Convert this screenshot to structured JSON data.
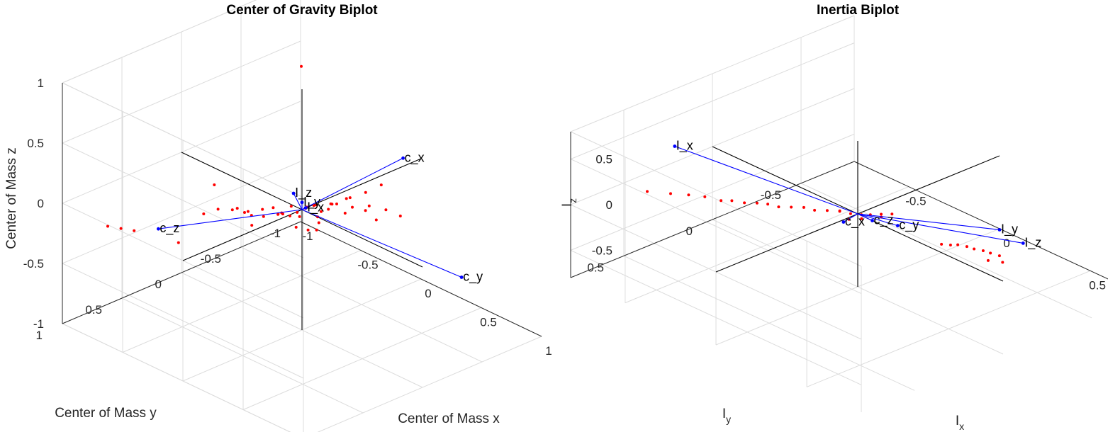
{
  "chart_data": [
    {
      "type": "scatter",
      "title": "Center of Gravity Biplot",
      "xlabel": "Center of Mass x",
      "ylabel": "Center of Mass y",
      "zlabel": "Center of Mass z",
      "xlim": [
        -1,
        1
      ],
      "ylim": [
        -1,
        1
      ],
      "zlim": [
        -1,
        1
      ],
      "xticks": [
        "-1",
        "-0.5",
        "0",
        "0.5",
        "1"
      ],
      "yticks": [
        "-1",
        "-0.5",
        "0",
        "0.5",
        "1"
      ],
      "zticks": [
        "-1",
        "-0.5",
        "0",
        "0.5",
        "1"
      ],
      "grid": true,
      "point_color": "#ff0000",
      "vector_color": "#0000ff",
      "vectors": [
        {
          "label": "c_x",
          "x": 0.72,
          "y": -0.12,
          "z": 0.72
        },
        {
          "label": "c_y",
          "x": 0.85,
          "y": -0.48,
          "z": -0.36
        },
        {
          "label": "c_z",
          "x": -0.52,
          "y": 0.68,
          "z": -0.12
        },
        {
          "label": "I_z",
          "x": -0.05,
          "y": 0.02,
          "z": 0.12
        },
        {
          "label": "I_y",
          "x": 0.0,
          "y": 0.0,
          "z": 0.06
        },
        {
          "label": "I_x",
          "x": 0.02,
          "y": -0.01,
          "z": 0.02
        }
      ],
      "points": [
        {
          "x": -0.92,
          "y": 0.7,
          "z": -0.28
        },
        {
          "x": -0.87,
          "y": 0.64,
          "z": -0.3
        },
        {
          "x": -0.82,
          "y": 0.58,
          "z": -0.32
        },
        {
          "x": -0.58,
          "y": 0.45,
          "z": -0.36
        },
        {
          "x": -0.55,
          "y": 0.18,
          "z": 0.02
        },
        {
          "x": -0.48,
          "y": 0.34,
          "z": -0.12
        },
        {
          "x": -0.4,
          "y": 0.3,
          "z": -0.06
        },
        {
          "x": -0.36,
          "y": 0.22,
          "z": -0.08
        },
        {
          "x": -0.3,
          "y": 0.24,
          "z": -0.03
        },
        {
          "x": -0.25,
          "y": 0.2,
          "z": -0.05
        },
        {
          "x": -0.22,
          "y": 0.1,
          "z": -0.12
        },
        {
          "x": -0.18,
          "y": 0.15,
          "z": -0.02
        },
        {
          "x": -0.15,
          "y": 0.05,
          "z": -0.09
        },
        {
          "x": -0.12,
          "y": 0.12,
          "z": 0.01
        },
        {
          "x": -0.1,
          "y": 0.0,
          "z": -0.1
        },
        {
          "x": -0.08,
          "y": 0.08,
          "z": -0.04
        },
        {
          "x": -0.06,
          "y": -0.02,
          "z": -0.06
        },
        {
          "x": -0.04,
          "y": 0.05,
          "z": 0.03
        },
        {
          "x": -0.02,
          "y": -0.05,
          "z": -0.02
        },
        {
          "x": 0.0,
          "y": 0.02,
          "z": -0.05
        },
        {
          "x": 0.02,
          "y": -0.08,
          "z": 0.01
        },
        {
          "x": 0.04,
          "y": 0.0,
          "z": 0.04
        },
        {
          "x": 0.06,
          "y": -0.1,
          "z": -0.03
        },
        {
          "x": 0.08,
          "y": -0.04,
          "z": 0.06
        },
        {
          "x": 0.1,
          "y": -0.12,
          "z": 0.0
        },
        {
          "x": 0.12,
          "y": -0.02,
          "z": -0.06
        },
        {
          "x": 0.14,
          "y": -0.15,
          "z": 0.05
        },
        {
          "x": 0.16,
          "y": -0.08,
          "z": 0.09
        },
        {
          "x": 0.18,
          "y": -0.18,
          "z": -0.02
        },
        {
          "x": 0.2,
          "y": -0.05,
          "z": 0.12
        },
        {
          "x": 0.22,
          "y": -0.2,
          "z": 0.04
        },
        {
          "x": 0.25,
          "y": -0.12,
          "z": 0.16
        },
        {
          "x": 0.28,
          "y": -0.25,
          "z": 0.02
        },
        {
          "x": 0.3,
          "y": -0.1,
          "z": 0.2
        },
        {
          "x": 0.34,
          "y": -0.22,
          "z": 0.1
        },
        {
          "x": 0.38,
          "y": -0.15,
          "z": 0.26
        },
        {
          "x": 0.42,
          "y": -0.28,
          "z": 0.08
        },
        {
          "x": 0.46,
          "y": -0.2,
          "z": 0.34
        },
        {
          "x": 0.5,
          "y": -0.32,
          "z": 0.05
        },
        {
          "x": -0.05,
          "y": 0.12,
          "z": 0.0
        },
        {
          "x": 0.05,
          "y": 0.1,
          "z": -0.08
        },
        {
          "x": -0.2,
          "y": 0.28,
          "z": 0.0
        },
        {
          "x": 0.1,
          "y": 0.05,
          "z": -0.1
        },
        {
          "x": -0.3,
          "y": 0.12,
          "z": -0.14
        },
        {
          "x": 0.15,
          "y": 0.02,
          "z": 0.02
        },
        {
          "x": 0.2,
          "y": 0.08,
          "z": -0.04
        },
        {
          "x": -0.12,
          "y": 0.3,
          "z": -0.06
        },
        {
          "x": 0.0,
          "y": 0.2,
          "z": 0.05
        },
        {
          "x": 0.32,
          "y": -0.3,
          "z": -0.06
        },
        {
          "x": -0.5,
          "y": -0.5,
          "z": 0.74
        }
      ]
    },
    {
      "type": "scatter",
      "title": "Inertia Biplot",
      "xlabel": "I",
      "xlabel_sub": "x",
      "ylabel": "I",
      "ylabel_sub": "y",
      "zlabel": "I",
      "zlabel_sub": "z",
      "xlim": [
        -0.8,
        0.8
      ],
      "ylim": [
        -0.8,
        0.8
      ],
      "zlim": [
        -0.8,
        0.8
      ],
      "xticks": [
        "-0.5",
        "0",
        "0.5"
      ],
      "yticks": [
        "-0.5",
        "0",
        "0.5"
      ],
      "zticks": [
        "-0.5",
        "0",
        "0.5"
      ],
      "grid": true,
      "point_color": "#ff0000",
      "vector_color": "#0000ff",
      "vectors": [
        {
          "label": "I_x",
          "x": -0.52,
          "y": 0.5,
          "z": 0.66
        },
        {
          "label": "I_y",
          "x": 0.8,
          "y": 0.02,
          "z": 0.58
        },
        {
          "label": "I_z",
          "x": 0.52,
          "y": -0.4,
          "z": -0.16
        },
        {
          "label": "c_y",
          "x": 0.2,
          "y": -0.02,
          "z": 0.04
        },
        {
          "label": "c_z",
          "x": 0.08,
          "y": 0.0,
          "z": 0.0
        },
        {
          "label": "c_x",
          "x": -0.02,
          "y": 0.06,
          "z": -0.06
        }
      ],
      "points": [
        {
          "x": -0.72,
          "y": 0.45,
          "z": -0.06
        },
        {
          "x": -0.64,
          "y": 0.4,
          "z": -0.05
        },
        {
          "x": -0.58,
          "y": 0.36,
          "z": -0.04
        },
        {
          "x": -0.52,
          "y": 0.33,
          "z": -0.03
        },
        {
          "x": -0.46,
          "y": 0.3,
          "z": -0.04
        },
        {
          "x": -0.42,
          "y": 0.28,
          "z": -0.02
        },
        {
          "x": -0.38,
          "y": 0.25,
          "z": -0.03
        },
        {
          "x": -0.34,
          "y": 0.22,
          "z": -0.02
        },
        {
          "x": -0.3,
          "y": 0.2,
          "z": -0.01
        },
        {
          "x": -0.26,
          "y": 0.18,
          "z": -0.02
        },
        {
          "x": -0.22,
          "y": 0.15,
          "z": -0.01
        },
        {
          "x": -0.18,
          "y": 0.12,
          "z": 0.0
        },
        {
          "x": -0.14,
          "y": 0.1,
          "z": -0.01
        },
        {
          "x": -0.1,
          "y": 0.07,
          "z": 0.0
        },
        {
          "x": -0.06,
          "y": 0.04,
          "z": 0.01
        },
        {
          "x": -0.02,
          "y": 0.02,
          "z": 0.0
        },
        {
          "x": 0.02,
          "y": 0.0,
          "z": 0.01
        },
        {
          "x": 0.05,
          "y": -0.02,
          "z": 0.02
        },
        {
          "x": 0.08,
          "y": -0.05,
          "z": 0.03
        },
        {
          "x": 0.11,
          "y": -0.02,
          "z": 0.05
        },
        {
          "x": 0.13,
          "y": -0.06,
          "z": 0.07
        },
        {
          "x": -0.08,
          "y": 0.02,
          "z": -0.03
        },
        {
          "x": 0.0,
          "y": 0.05,
          "z": -0.02
        },
        {
          "x": 0.04,
          "y": 0.02,
          "z": 0.0
        },
        {
          "x": 0.58,
          "y": 0.03,
          "z": 0.22
        },
        {
          "x": 0.62,
          "y": 0.02,
          "z": 0.23
        },
        {
          "x": 0.66,
          "y": 0.02,
          "z": 0.24
        },
        {
          "x": 0.7,
          "y": 0.01,
          "z": 0.25
        },
        {
          "x": 0.74,
          "y": 0.01,
          "z": 0.26
        },
        {
          "x": 0.78,
          "y": 0.0,
          "z": 0.26
        },
        {
          "x": 0.54,
          "y": 0.03,
          "z": 0.18
        },
        {
          "x": 0.5,
          "y": 0.04,
          "z": 0.16
        },
        {
          "x": 0.62,
          "y": -0.1,
          "z": -0.02
        },
        {
          "x": 0.68,
          "y": -0.12,
          "z": 0.0
        }
      ]
    }
  ]
}
